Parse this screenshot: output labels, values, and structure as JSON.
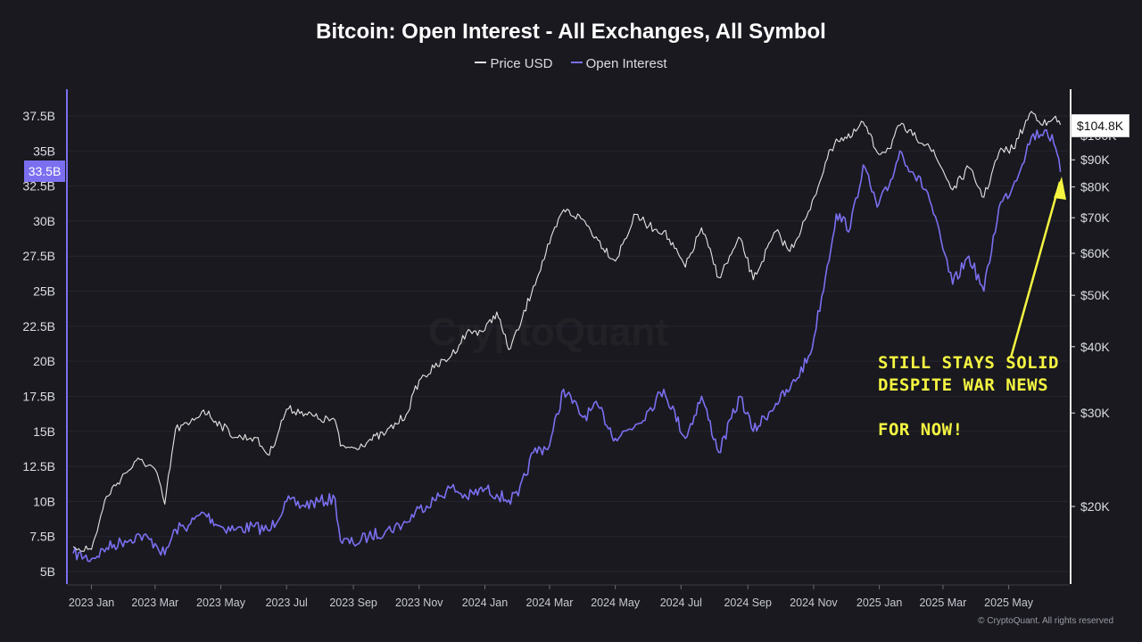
{
  "chart": {
    "title": "Bitcoin: Open Interest - All Exchanges, All Symbol",
    "watermark": "CryptoQuant",
    "copyright": "© CryptoQuant. All rights reserved",
    "legend": [
      {
        "label": "Price USD",
        "color": "#e6e6e6"
      },
      {
        "label": "Open Interest",
        "color": "#7b6ff0"
      }
    ],
    "oi_current_label": "33.5B",
    "price_current_label": "$104.8K",
    "annotation": {
      "line1": "STILL STAYS SOLID",
      "line2": "DESPITE WAR NEWS",
      "line3": "FOR NOW!",
      "color": "#f5f542"
    }
  },
  "chart_data": {
    "type": "line",
    "title": "Bitcoin: Open Interest - All Exchanges, All Symbol",
    "x_ticks": [
      "2023 Jan",
      "2023 Mar",
      "2023 May",
      "2023 Jul",
      "2023 Sep",
      "2023 Nov",
      "2024 Jan",
      "2024 Mar",
      "2024 May",
      "2024 Jul",
      "2024 Sep",
      "2024 Nov",
      "2025 Jan",
      "2025 Mar",
      "2025 May"
    ],
    "left_axis": {
      "ticks": [
        "37.5B",
        "35B",
        "32.5B",
        "30B",
        "27.5B",
        "25B",
        "22.5B",
        "20B",
        "17.5B",
        "15B",
        "12.5B",
        "10B",
        "7.5B",
        "5B"
      ],
      "ylim": [
        5,
        37.5
      ]
    },
    "right_axis": {
      "scale": "log",
      "ticks": [
        "$100K",
        "$90K",
        "$80K",
        "$70K",
        "$60K",
        "$50K",
        "$40K",
        "$30K",
        "$20K"
      ],
      "ylim": [
        15000,
        110000
      ]
    },
    "grid": true,
    "legend_position": "top-center",
    "series": [
      {
        "name": "Price USD",
        "axis": "right",
        "color": "#e6e6e6",
        "points": [
          [
            "2022-12-15",
            16800
          ],
          [
            "2023-01-01",
            16600
          ],
          [
            "2023-01-15",
            20900
          ],
          [
            "2023-02-01",
            23100
          ],
          [
            "2023-02-15",
            24500
          ],
          [
            "2023-03-01",
            23500
          ],
          [
            "2023-03-10",
            20200
          ],
          [
            "2023-03-20",
            28000
          ],
          [
            "2023-04-01",
            28500
          ],
          [
            "2023-04-15",
            30400
          ],
          [
            "2023-05-01",
            28500
          ],
          [
            "2023-05-15",
            27000
          ],
          [
            "2023-06-01",
            27000
          ],
          [
            "2023-06-15",
            25000
          ],
          [
            "2023-07-01",
            30500
          ],
          [
            "2023-07-15",
            30200
          ],
          [
            "2023-08-01",
            29200
          ],
          [
            "2023-08-15",
            29100
          ],
          [
            "2023-08-20",
            26000
          ],
          [
            "2023-09-01",
            25800
          ],
          [
            "2023-09-15",
            26600
          ],
          [
            "2023-10-01",
            27500
          ],
          [
            "2023-10-20",
            29800
          ],
          [
            "2023-11-01",
            34600
          ],
          [
            "2023-11-15",
            36500
          ],
          [
            "2023-12-01",
            38500
          ],
          [
            "2023-12-15",
            42500
          ],
          [
            "2024-01-01",
            43000
          ],
          [
            "2024-01-12",
            46500
          ],
          [
            "2024-01-23",
            39500
          ],
          [
            "2024-02-01",
            43000
          ],
          [
            "2024-02-15",
            52000
          ],
          [
            "2024-03-01",
            62500
          ],
          [
            "2024-03-14",
            72500
          ],
          [
            "2024-04-01",
            69500
          ],
          [
            "2024-04-15",
            63500
          ],
          [
            "2024-05-01",
            58000
          ],
          [
            "2024-05-20",
            71000
          ],
          [
            "2024-06-01",
            67500
          ],
          [
            "2024-06-15",
            66000
          ],
          [
            "2024-07-05",
            56500
          ],
          [
            "2024-07-20",
            67000
          ],
          [
            "2024-08-05",
            54000
          ],
          [
            "2024-08-25",
            64000
          ],
          [
            "2024-09-06",
            53500
          ],
          [
            "2024-09-27",
            66000
          ],
          [
            "2024-10-10",
            60500
          ],
          [
            "2024-10-29",
            72500
          ],
          [
            "2024-11-12",
            89000
          ],
          [
            "2024-11-22",
            98500
          ],
          [
            "2024-12-05",
            99000
          ],
          [
            "2024-12-17",
            106000
          ],
          [
            "2024-12-30",
            93000
          ],
          [
            "2025-01-10",
            94500
          ],
          [
            "2025-01-20",
            104500
          ],
          [
            "2025-02-01",
            100000
          ],
          [
            "2025-02-15",
            96500
          ],
          [
            "2025-03-01",
            86000
          ],
          [
            "2025-03-10",
            79000
          ],
          [
            "2025-03-25",
            87000
          ],
          [
            "2025-04-08",
            76500
          ],
          [
            "2025-04-22",
            93000
          ],
          [
            "2025-05-05",
            94500
          ],
          [
            "2025-05-22",
            111000
          ],
          [
            "2025-06-05",
            104500
          ],
          [
            "2025-06-12",
            108000
          ],
          [
            "2025-06-18",
            104800
          ]
        ]
      },
      {
        "name": "Open Interest",
        "axis": "left",
        "color": "#7b6ff0",
        "points": [
          [
            "2022-12-15",
            6.3
          ],
          [
            "2023-01-01",
            5.9
          ],
          [
            "2023-01-15",
            6.7
          ],
          [
            "2023-02-01",
            7.2
          ],
          [
            "2023-02-15",
            7.6
          ],
          [
            "2023-03-01",
            7.0
          ],
          [
            "2023-03-10",
            6.2
          ],
          [
            "2023-03-20",
            8.0
          ],
          [
            "2023-04-01",
            8.3
          ],
          [
            "2023-04-15",
            9.2
          ],
          [
            "2023-05-01",
            8.2
          ],
          [
            "2023-05-15",
            8.0
          ],
          [
            "2023-06-01",
            8.2
          ],
          [
            "2023-06-15",
            7.9
          ],
          [
            "2023-07-01",
            10.0
          ],
          [
            "2023-07-15",
            9.7
          ],
          [
            "2023-08-01",
            10.0
          ],
          [
            "2023-08-15",
            10.2
          ],
          [
            "2023-08-20",
            7.2
          ],
          [
            "2023-09-01",
            7.0
          ],
          [
            "2023-09-15",
            7.5
          ],
          [
            "2023-10-01",
            7.9
          ],
          [
            "2023-10-20",
            8.5
          ],
          [
            "2023-11-01",
            9.5
          ],
          [
            "2023-11-15",
            10.1
          ],
          [
            "2023-12-01",
            11.0
          ],
          [
            "2023-12-15",
            10.3
          ],
          [
            "2024-01-01",
            10.9
          ],
          [
            "2024-01-12",
            10.5
          ],
          [
            "2024-01-23",
            10.1
          ],
          [
            "2024-02-01",
            10.4
          ],
          [
            "2024-02-15",
            13.5
          ],
          [
            "2024-03-01",
            14.0
          ],
          [
            "2024-03-14",
            18.0
          ],
          [
            "2024-04-01",
            16.0
          ],
          [
            "2024-04-15",
            16.8
          ],
          [
            "2024-05-01",
            14.5
          ],
          [
            "2024-05-20",
            15.5
          ],
          [
            "2024-06-01",
            16.5
          ],
          [
            "2024-06-15",
            18.0
          ],
          [
            "2024-07-05",
            14.5
          ],
          [
            "2024-07-20",
            17.5
          ],
          [
            "2024-08-05",
            13.5
          ],
          [
            "2024-08-25",
            17.5
          ],
          [
            "2024-09-06",
            15.0
          ],
          [
            "2024-09-27",
            17.0
          ],
          [
            "2024-10-10",
            18.0
          ],
          [
            "2024-10-29",
            20.5
          ],
          [
            "2024-11-12",
            26.0
          ],
          [
            "2024-11-22",
            30.5
          ],
          [
            "2024-12-05",
            29.5
          ],
          [
            "2024-12-17",
            34.0
          ],
          [
            "2024-12-30",
            31.0
          ],
          [
            "2025-01-10",
            32.5
          ],
          [
            "2025-01-20",
            35.0
          ],
          [
            "2025-02-01",
            33.5
          ],
          [
            "2025-02-15",
            32.0
          ],
          [
            "2025-03-01",
            28.0
          ],
          [
            "2025-03-10",
            25.5
          ],
          [
            "2025-03-25",
            27.5
          ],
          [
            "2025-04-08",
            25.0
          ],
          [
            "2025-04-22",
            31.0
          ],
          [
            "2025-05-05",
            32.5
          ],
          [
            "2025-05-22",
            36.0
          ],
          [
            "2025-06-05",
            36.5
          ],
          [
            "2025-06-12",
            35.5
          ],
          [
            "2025-06-18",
            33.5
          ]
        ]
      }
    ]
  }
}
